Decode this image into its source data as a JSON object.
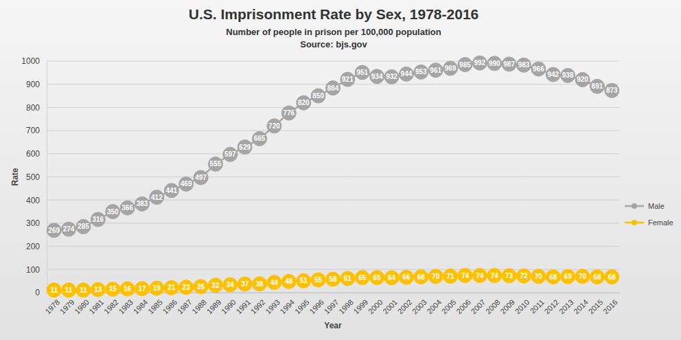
{
  "chart_data": {
    "type": "line",
    "title": "U.S. Imprisonment Rate by Sex, 1978-2016",
    "subtitle": [
      "Number of people in prison per 100,000 population",
      "Source: bjs.gov"
    ],
    "xlabel": "Year",
    "ylabel": "Rate",
    "categories": [
      "1978",
      "1979",
      "1980",
      "1981",
      "1982",
      "1983",
      "1984",
      "1985",
      "1986",
      "1987",
      "1988",
      "1989",
      "1990",
      "1991",
      "1992",
      "1993",
      "1994",
      "1995",
      "1996",
      "1997",
      "1998",
      "1999",
      "2000",
      "2001",
      "2002",
      "2003",
      "2004",
      "2005",
      "2006",
      "2007",
      "2008",
      "2009",
      "2010",
      "2011",
      "2012",
      "2013",
      "2014",
      "2015",
      "2016"
    ],
    "series": [
      {
        "name": "Male",
        "color": "#a5a5a5",
        "marker": "circle",
        "line_style": "solid",
        "values": [
          269,
          274,
          285,
          316,
          350,
          366,
          383,
          412,
          441,
          469,
          497,
          555,
          597,
          629,
          665,
          720,
          776,
          820,
          850,
          884,
          921,
          951,
          934,
          932,
          944,
          953,
          961,
          969,
          985,
          992,
          990,
          987,
          983,
          966,
          942,
          938,
          920,
          891,
          873
        ]
      },
      {
        "name": "Female",
        "color": "#ffc000",
        "marker": "circle",
        "line_style": "solid",
        "values": [
          11,
          11,
          11,
          13,
          15,
          16,
          17,
          19,
          21,
          23,
          26,
          32,
          34,
          37,
          38,
          44,
          48,
          51,
          55,
          58,
          61,
          65,
          65,
          64,
          66,
          68,
          70,
          71,
          74,
          74,
          74,
          73,
          72,
          70,
          68,
          69,
          70,
          68,
          68
        ]
      }
    ],
    "ylim": [
      0,
      1000
    ],
    "yticks": [
      0,
      100,
      200,
      300,
      400,
      500,
      600,
      700,
      800,
      900,
      1000
    ],
    "grid": true,
    "legend": "right",
    "data_labels": true
  }
}
